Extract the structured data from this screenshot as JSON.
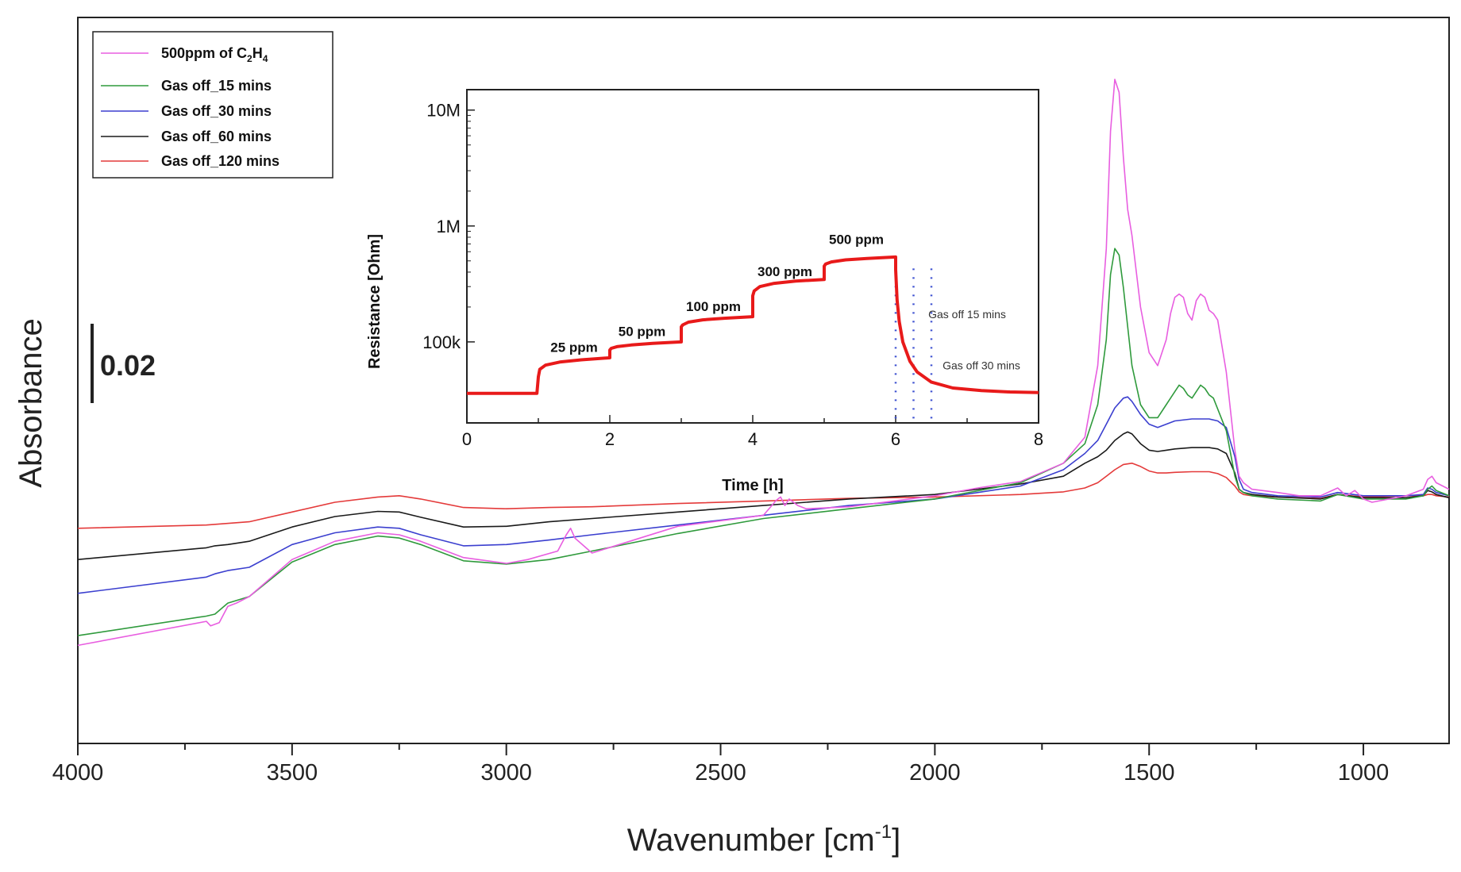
{
  "chart_data": [
    {
      "type": "line",
      "title": "",
      "xlabel": "Wavenumber [cm⁻¹]",
      "xlabel_main": "Wavenumber [cm",
      "xlabel_sup": "-1",
      "xlabel_close": "]",
      "ylabel": "Absorbance",
      "xlim": [
        4000,
        800
      ],
      "ylim": [
        0,
        1
      ],
      "x_reversed": true,
      "x_ticks": [
        "4000",
        "3500",
        "3000",
        "2500",
        "2000",
        "1500",
        "1000"
      ],
      "scale_bar_label": "0.02",
      "scale_bar_value": 0.02,
      "legend_position": "top-left",
      "legend": [
        {
          "label": "500ppm of C",
          "sub1": "2",
          "mid": "H",
          "sub2": "4",
          "color": "#e85ee0"
        },
        {
          "label": "Gas off_15 mins",
          "color": "#2f9a3c"
        },
        {
          "label": "Gas off_30 mins",
          "color": "#3b3fcf"
        },
        {
          "label": "Gas off_60 mins",
          "color": "#1a1a1a"
        },
        {
          "label": "Gas off_120 mins",
          "color": "#e43a3a"
        }
      ],
      "series": [
        {
          "name": "500ppm of C2H4",
          "color": "#e85ee0",
          "x": [
            4000,
            3700,
            3690,
            3670,
            3650,
            3630,
            3600,
            3500,
            3400,
            3300,
            3250,
            3200,
            3100,
            3000,
            2950,
            2880,
            2860,
            2850,
            2840,
            2800,
            2600,
            2400,
            2370,
            2360,
            2350,
            2340,
            2330,
            2320,
            2300,
            2200,
            2000,
            1900,
            1800,
            1700,
            1650,
            1620,
            1600,
            1590,
            1580,
            1570,
            1560,
            1550,
            1540,
            1520,
            1500,
            1480,
            1460,
            1450,
            1440,
            1430,
            1420,
            1410,
            1400,
            1390,
            1380,
            1370,
            1360,
            1350,
            1340,
            1320,
            1300,
            1290,
            1280,
            1260,
            1200,
            1150,
            1100,
            1060,
            1040,
            1020,
            1000,
            980,
            900,
            860,
            850,
            840,
            830,
            800
          ],
          "y": [
            0.13,
            0.167,
            0.16,
            0.165,
            0.19,
            0.195,
            0.205,
            0.262,
            0.29,
            0.303,
            0.3,
            0.29,
            0.265,
            0.256,
            0.262,
            0.275,
            0.3,
            0.31,
            0.295,
            0.272,
            0.313,
            0.33,
            0.353,
            0.358,
            0.345,
            0.355,
            0.35,
            0.345,
            0.34,
            0.343,
            0.36,
            0.372,
            0.382,
            0.41,
            0.45,
            0.56,
            0.74,
            0.92,
            1.0,
            0.98,
            0.88,
            0.8,
            0.76,
            0.65,
            0.58,
            0.56,
            0.6,
            0.64,
            0.665,
            0.67,
            0.665,
            0.64,
            0.63,
            0.66,
            0.67,
            0.665,
            0.645,
            0.64,
            0.63,
            0.55,
            0.43,
            0.39,
            0.38,
            0.37,
            0.365,
            0.36,
            0.36,
            0.372,
            0.36,
            0.368,
            0.355,
            0.35,
            0.36,
            0.37,
            0.385,
            0.39,
            0.38,
            0.37
          ]
        },
        {
          "name": "Gas off_15 mins",
          "color": "#2f9a3c",
          "x": [
            4000,
            3700,
            3680,
            3650,
            3600,
            3500,
            3400,
            3300,
            3250,
            3200,
            3100,
            3000,
            2900,
            2800,
            2600,
            2400,
            2200,
            2000,
            1800,
            1700,
            1650,
            1620,
            1600,
            1590,
            1580,
            1570,
            1560,
            1550,
            1540,
            1520,
            1500,
            1480,
            1460,
            1440,
            1430,
            1420,
            1410,
            1400,
            1390,
            1380,
            1370,
            1360,
            1350,
            1320,
            1300,
            1290,
            1280,
            1260,
            1200,
            1100,
            1060,
            1000,
            900,
            860,
            850,
            840,
            830,
            800
          ],
          "y": [
            0.145,
            0.175,
            0.178,
            0.195,
            0.205,
            0.258,
            0.285,
            0.298,
            0.295,
            0.285,
            0.26,
            0.255,
            0.262,
            0.275,
            0.302,
            0.325,
            0.34,
            0.355,
            0.38,
            0.41,
            0.44,
            0.5,
            0.6,
            0.7,
            0.74,
            0.73,
            0.68,
            0.62,
            0.56,
            0.5,
            0.48,
            0.48,
            0.5,
            0.52,
            0.53,
            0.525,
            0.515,
            0.51,
            0.52,
            0.53,
            0.525,
            0.515,
            0.51,
            0.46,
            0.39,
            0.37,
            0.365,
            0.36,
            0.355,
            0.352,
            0.362,
            0.355,
            0.355,
            0.36,
            0.37,
            0.375,
            0.368,
            0.36
          ]
        },
        {
          "name": "Gas off_30 mins",
          "color": "#3b3fcf",
          "x": [
            4000,
            3700,
            3680,
            3650,
            3600,
            3500,
            3400,
            3300,
            3250,
            3200,
            3100,
            3000,
            2900,
            2800,
            2600,
            2400,
            2200,
            2000,
            1800,
            1700,
            1650,
            1620,
            1600,
            1580,
            1560,
            1550,
            1540,
            1520,
            1500,
            1480,
            1460,
            1440,
            1400,
            1380,
            1360,
            1340,
            1320,
            1300,
            1290,
            1280,
            1260,
            1200,
            1100,
            1060,
            1000,
            900,
            860,
            850,
            840,
            830,
            800
          ],
          "y": [
            0.21,
            0.235,
            0.24,
            0.245,
            0.25,
            0.285,
            0.303,
            0.312,
            0.31,
            0.3,
            0.283,
            0.285,
            0.292,
            0.3,
            0.315,
            0.33,
            0.345,
            0.355,
            0.375,
            0.4,
            0.425,
            0.445,
            0.47,
            0.495,
            0.51,
            0.512,
            0.505,
            0.485,
            0.47,
            0.465,
            0.47,
            0.475,
            0.478,
            0.478,
            0.478,
            0.475,
            0.465,
            0.42,
            0.385,
            0.37,
            0.365,
            0.36,
            0.358,
            0.365,
            0.36,
            0.36,
            0.362,
            0.372,
            0.37,
            0.365,
            0.36
          ]
        },
        {
          "name": "Gas off_60 mins",
          "color": "#1a1a1a",
          "x": [
            4000,
            3700,
            3680,
            3650,
            3600,
            3500,
            3400,
            3300,
            3250,
            3200,
            3100,
            3000,
            2900,
            2800,
            2600,
            2400,
            2200,
            2000,
            1800,
            1700,
            1650,
            1620,
            1600,
            1580,
            1560,
            1550,
            1540,
            1520,
            1500,
            1480,
            1460,
            1440,
            1400,
            1380,
            1360,
            1340,
            1320,
            1300,
            1290,
            1280,
            1260,
            1200,
            1100,
            1060,
            1000,
            900,
            860,
            850,
            840,
            830,
            800
          ],
          "y": [
            0.262,
            0.28,
            0.283,
            0.285,
            0.29,
            0.312,
            0.328,
            0.336,
            0.335,
            0.327,
            0.312,
            0.313,
            0.32,
            0.325,
            0.335,
            0.345,
            0.355,
            0.362,
            0.378,
            0.39,
            0.41,
            0.42,
            0.43,
            0.445,
            0.455,
            0.458,
            0.455,
            0.44,
            0.43,
            0.428,
            0.43,
            0.432,
            0.434,
            0.434,
            0.434,
            0.432,
            0.425,
            0.395,
            0.37,
            0.365,
            0.362,
            0.358,
            0.355,
            0.362,
            0.357,
            0.357,
            0.36,
            0.368,
            0.366,
            0.362,
            0.357
          ]
        },
        {
          "name": "Gas off_120 mins",
          "color": "#e43a3a",
          "x": [
            4000,
            3700,
            3600,
            3500,
            3400,
            3300,
            3250,
            3200,
            3100,
            3000,
            2900,
            2800,
            2600,
            2400,
            2200,
            2000,
            1800,
            1700,
            1650,
            1620,
            1600,
            1580,
            1560,
            1540,
            1520,
            1500,
            1480,
            1460,
            1440,
            1400,
            1380,
            1360,
            1340,
            1320,
            1300,
            1290,
            1280,
            1260,
            1200,
            1100,
            1060,
            1000,
            900,
            860,
            850,
            840,
            830,
            800
          ],
          "y": [
            0.31,
            0.315,
            0.32,
            0.335,
            0.35,
            0.358,
            0.36,
            0.355,
            0.342,
            0.34,
            0.342,
            0.343,
            0.348,
            0.352,
            0.356,
            0.358,
            0.362,
            0.366,
            0.372,
            0.38,
            0.39,
            0.4,
            0.408,
            0.41,
            0.405,
            0.398,
            0.395,
            0.395,
            0.396,
            0.397,
            0.397,
            0.397,
            0.394,
            0.388,
            0.375,
            0.366,
            0.362,
            0.36,
            0.358,
            0.356,
            0.362,
            0.358,
            0.36,
            0.36,
            0.362,
            0.362,
            0.36,
            0.358
          ]
        }
      ]
    },
    {
      "type": "line",
      "title": "",
      "xlabel": "Time [h]",
      "ylabel": "Resistance [Ohm]",
      "xlim": [
        0,
        8
      ],
      "ylim": [
        20000,
        15000000
      ],
      "y_scale": "log",
      "x_ticks": [
        "0",
        "2",
        "4",
        "6",
        "8"
      ],
      "x_tick_values": [
        0,
        2,
        4,
        6,
        8
      ],
      "y_ticks": [
        "100k",
        "1M",
        "10M"
      ],
      "y_tick_values": [
        100000,
        1000000,
        10000000
      ],
      "series": [
        {
          "name": "Resistance",
          "color": "#e81a1a",
          "x": [
            0,
            0.98,
            1.0,
            1.02,
            1.1,
            1.3,
            1.6,
            2.0,
            2.0,
            2.02,
            2.1,
            2.3,
            2.6,
            3.0,
            3.0,
            3.02,
            3.1,
            3.3,
            3.6,
            4.0,
            4.0,
            4.02,
            4.1,
            4.3,
            4.6,
            5.0,
            5.0,
            5.02,
            5.1,
            5.3,
            5.6,
            6.0,
            6.0,
            6.02,
            6.05,
            6.1,
            6.2,
            6.3,
            6.5,
            6.8,
            7.2,
            7.6,
            8.0
          ],
          "y": [
            36000,
            36000,
            50000,
            58000,
            63000,
            67000,
            70000,
            73000,
            85000,
            88000,
            91000,
            94000,
            97000,
            100000,
            135000,
            140000,
            148000,
            155000,
            160000,
            165000,
            250000,
            275000,
            300000,
            320000,
            335000,
            345000,
            450000,
            470000,
            490000,
            510000,
            525000,
            540000,
            420000,
            230000,
            150000,
            100000,
            68000,
            55000,
            45000,
            40000,
            38000,
            37000,
            36500
          ]
        }
      ],
      "annotations": [
        {
          "text": "25 ppm",
          "x": 1.5,
          "y": 82000
        },
        {
          "text": "50 ppm",
          "x": 2.45,
          "y": 112000
        },
        {
          "text": "100 ppm",
          "x": 3.45,
          "y": 185000
        },
        {
          "text": "300 ppm",
          "x": 4.45,
          "y": 370000
        },
        {
          "text": "500 ppm",
          "x": 5.45,
          "y": 700000
        },
        {
          "text": "Gas off 15 mins",
          "x": 7.0,
          "y": 160000
        },
        {
          "text": "Gas off 30 mins",
          "x": 7.2,
          "y": 58000
        }
      ],
      "vlines": [
        {
          "x": 6.0,
          "color": "#3b4fd0",
          "style": "dotted"
        },
        {
          "x": 6.25,
          "color": "#3b4fd0",
          "style": "dotted"
        },
        {
          "x": 6.5,
          "color": "#3b4fd0",
          "style": "dotted"
        }
      ]
    }
  ]
}
